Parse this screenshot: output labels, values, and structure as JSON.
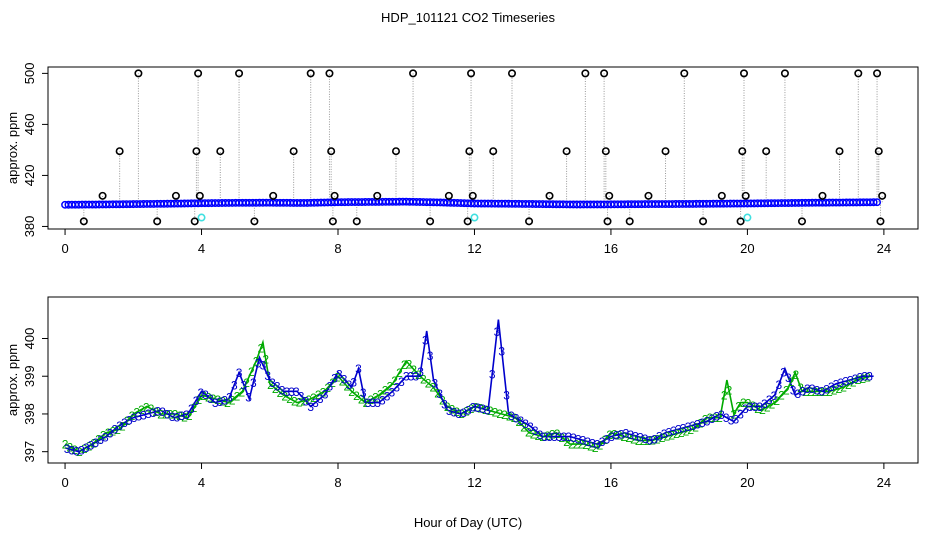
{
  "figure": {
    "title": "HDP_101121  CO2 Timeseries",
    "xlabel": "Hour of Day (UTC)"
  },
  "colors": {
    "axis": "#000000",
    "baseline_points": "#0000ff",
    "spike_points": "#000000",
    "flag_points": "#40e0e0",
    "drop_lines": "#999999",
    "series_2": "#00aa00",
    "series_3": "#0000cc"
  },
  "chart_data": [
    {
      "type": "scatter",
      "panel": "top",
      "title": "",
      "xlabel": "",
      "ylabel": "approx. ppm",
      "xlim": [
        -0.5,
        25
      ],
      "ylim": [
        378,
        505
      ],
      "xticks": [
        0,
        4,
        8,
        12,
        16,
        20,
        24
      ],
      "yticks": [
        380,
        420,
        460,
        500
      ],
      "baseline": {
        "name": "raw",
        "x": [
          0.0,
          1.0,
          2.0,
          3.0,
          4.0,
          5.0,
          6.0,
          7.0,
          8.0,
          9.0,
          10.0,
          11.0,
          12.0,
          13.0,
          14.0,
          15.0,
          16.0,
          17.0,
          18.0,
          19.0,
          20.0,
          21.0,
          22.0,
          23.0,
          23.8
        ],
        "y": [
          397.0,
          397.2,
          397.5,
          397.8,
          398.2,
          398.5,
          398.6,
          398.4,
          399.0,
          399.2,
          399.4,
          398.8,
          398.0,
          397.8,
          397.5,
          397.2,
          397.3,
          397.5,
          397.6,
          397.8,
          398.0,
          398.3,
          398.6,
          398.8,
          399.0
        ],
        "sample_interval_hours": 0.1
      },
      "spikes": {
        "name": "spike",
        "x": [
          0.55,
          1.1,
          1.6,
          2.15,
          2.7,
          3.25,
          3.8,
          3.85,
          3.9,
          3.95,
          4.55,
          5.1,
          5.55,
          6.1,
          6.7,
          7.2,
          7.75,
          7.8,
          7.85,
          7.9,
          8.55,
          9.15,
          9.7,
          10.2,
          10.7,
          11.25,
          11.8,
          11.85,
          11.9,
          11.95,
          12.55,
          13.1,
          13.6,
          14.2,
          14.7,
          15.25,
          15.8,
          15.85,
          15.9,
          15.95,
          16.55,
          17.1,
          17.6,
          18.15,
          18.7,
          19.25,
          19.8,
          19.85,
          19.9,
          19.95,
          20.55,
          21.1,
          21.6,
          22.2,
          22.7,
          23.25,
          23.8,
          23.85,
          23.9,
          23.95
        ],
        "y": [
          384,
          404,
          439,
          500,
          384,
          404,
          384,
          439,
          500,
          404,
          439,
          500,
          384,
          404,
          439,
          500,
          500,
          439,
          384,
          404,
          384,
          404,
          439,
          500,
          384,
          404,
          384,
          439,
          500,
          404,
          439,
          500,
          384,
          404,
          439,
          500,
          500,
          439,
          384,
          404,
          384,
          404,
          439,
          500,
          384,
          404,
          384,
          439,
          500,
          404,
          439,
          500,
          384,
          404,
          439,
          500,
          500,
          439,
          384,
          404
        ]
      },
      "flags": {
        "name": "flagged",
        "x": [
          4.0,
          12.0,
          20.0
        ],
        "y": [
          387,
          387,
          387
        ]
      }
    },
    {
      "type": "line",
      "panel": "bottom",
      "title": "",
      "xlabel": "",
      "ylabel": "approx. ppm",
      "xlim": [
        -0.5,
        25
      ],
      "ylim": [
        396.7,
        401.1
      ],
      "xticks": [
        0,
        4,
        8,
        12,
        16,
        20,
        24
      ],
      "yticks": [
        397,
        398,
        399,
        400
      ],
      "series": [
        {
          "name": "2",
          "marker": "2",
          "x": [
            0.0,
            0.4,
            0.8,
            1.2,
            1.6,
            2.0,
            2.4,
            2.8,
            3.2,
            3.6,
            4.0,
            4.4,
            4.8,
            5.2,
            5.6,
            5.8,
            6.0,
            6.4,
            6.8,
            7.2,
            7.6,
            8.0,
            8.4,
            8.8,
            9.2,
            9.6,
            10.0,
            10.4,
            10.8,
            11.2,
            11.6,
            12.0,
            12.4,
            12.8,
            13.2,
            13.6,
            14.0,
            14.4,
            14.8,
            15.2,
            15.6,
            16.0,
            16.4,
            16.8,
            17.2,
            17.6,
            18.0,
            18.4,
            18.8,
            19.2,
            19.4,
            19.6,
            19.8,
            20.0,
            20.4,
            20.8,
            21.2,
            21.4,
            21.6,
            22.0,
            22.4,
            22.8,
            23.2,
            23.6
          ],
          "y": [
            397.2,
            397.0,
            397.2,
            397.5,
            397.6,
            398.0,
            398.2,
            398.0,
            398.0,
            397.9,
            398.5,
            398.4,
            398.3,
            398.6,
            399.4,
            399.9,
            398.8,
            398.5,
            398.3,
            398.4,
            398.6,
            399.0,
            398.6,
            398.3,
            398.5,
            398.8,
            399.4,
            399.0,
            398.7,
            398.2,
            398.0,
            398.2,
            398.1,
            398.0,
            397.9,
            397.5,
            397.4,
            397.5,
            397.2,
            397.2,
            397.1,
            397.5,
            397.4,
            397.3,
            397.3,
            397.4,
            397.5,
            397.6,
            397.9,
            397.9,
            398.9,
            398.0,
            398.3,
            398.3,
            398.1,
            398.3,
            398.7,
            399.1,
            398.6,
            398.6,
            398.6,
            398.7,
            398.9,
            399.0
          ]
        },
        {
          "name": "3",
          "marker": "3",
          "x": [
            0.0,
            0.4,
            0.8,
            1.2,
            1.6,
            2.0,
            2.4,
            2.8,
            3.2,
            3.6,
            4.0,
            4.4,
            4.8,
            5.1,
            5.4,
            5.7,
            6.0,
            6.4,
            6.8,
            7.2,
            7.6,
            8.0,
            8.4,
            8.6,
            8.8,
            9.2,
            9.6,
            10.0,
            10.4,
            10.6,
            10.8,
            11.2,
            11.6,
            12.0,
            12.4,
            12.7,
            13.0,
            13.6,
            14.0,
            14.4,
            14.8,
            15.2,
            15.6,
            16.0,
            16.4,
            16.8,
            17.2,
            17.6,
            18.0,
            18.4,
            18.8,
            19.2,
            19.6,
            20.0,
            20.4,
            20.8,
            21.1,
            21.4,
            21.8,
            22.2,
            22.6,
            23.0,
            23.4,
            23.7
          ],
          "y": [
            397.1,
            397.0,
            397.2,
            397.4,
            397.7,
            397.9,
            398.0,
            398.1,
            397.9,
            398.0,
            398.6,
            398.3,
            398.4,
            399.1,
            398.4,
            399.5,
            398.9,
            398.6,
            398.6,
            398.2,
            398.5,
            399.1,
            398.7,
            399.2,
            398.3,
            398.3,
            398.6,
            399.0,
            399.0,
            400.2,
            398.9,
            398.1,
            398.0,
            398.2,
            398.1,
            400.5,
            398.0,
            397.7,
            397.4,
            397.4,
            397.4,
            397.3,
            397.2,
            397.4,
            397.5,
            397.4,
            397.3,
            397.5,
            397.6,
            397.7,
            397.8,
            398.0,
            397.8,
            398.2,
            398.2,
            398.5,
            399.2,
            398.5,
            398.7,
            398.6,
            398.8,
            398.9,
            399.0,
            399.0
          ]
        }
      ]
    }
  ]
}
